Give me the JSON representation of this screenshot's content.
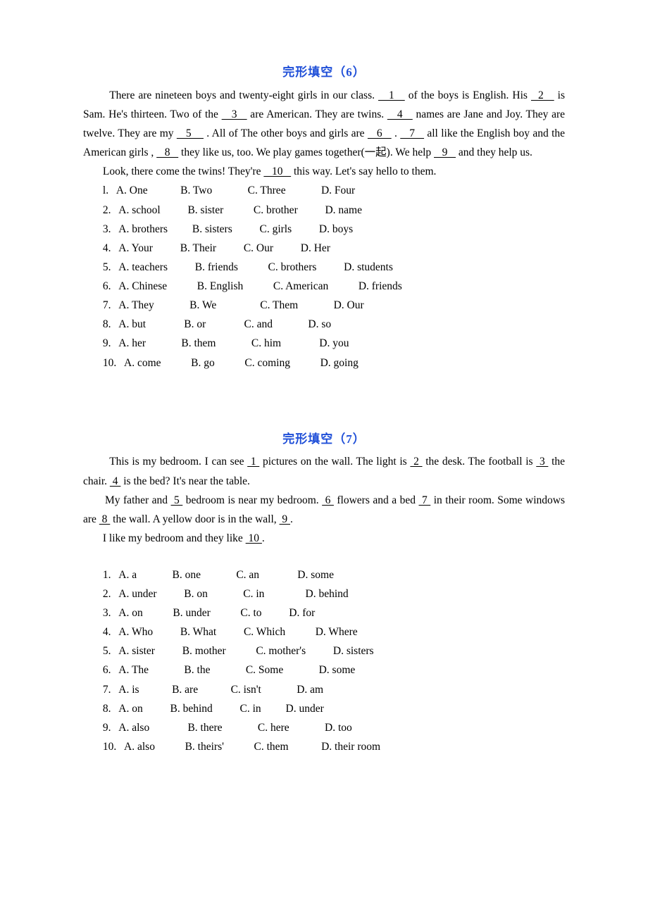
{
  "colors": {
    "title": "#1f4fd8",
    "text": "#000000",
    "background": "#ffffff"
  },
  "typography": {
    "body_family": "Times New Roman",
    "body_size_pt": 12,
    "title_size_pt": 13,
    "title_weight": "bold",
    "line_height": 1.75
  },
  "sec6": {
    "title": "完形填空（6）",
    "p1a": "There are nineteen boys and twenty-eight girls in our class. ",
    "b1": "   1   ",
    "p1b": " of the boys is English. His ",
    "b2": "  2   ",
    "p1c": " is Sam. He's thirteen. Two of the ",
    "b3": "   3   ",
    "p1d": " are American. They are twins. ",
    "b4": "   4   ",
    "p1e": " names are Jane and Joy. They are twelve. They are my ",
    "b5": "   5    ",
    "p1f": " . All of The other boys and girls are ",
    "b6": "   6   ",
    "p1g": " . ",
    "b7": "   7   ",
    "p1h": " all like the English boy and the American girls ,    ",
    "b8": "   8   ",
    "p1i": "  they like us, too. We play games together(",
    "cn1": "一起",
    "p1j": "). We help ",
    "b9": "   9   ",
    "p1k": " and they help us.",
    "p2a": "Look, there come the twins! They're    ",
    "b10": "   10   ",
    "p2b": "  this way. Let's say hello to them.",
    "rows": [
      "l.   A. One            B. Two             C. Three             D. Four",
      "2.   A. school          B. sister           C. brother          D. name",
      "3.   A. brothers         B. sisters          C. girls          D. boys",
      "4.   A. Your          B. Their          C. Our          D. Her",
      "5.   A. teachers          B. friends           C. brothers          D. students",
      "6.   A. Chinese           B. English           C. American           D. friends",
      "7.   A. They             B. We                C. Them             D. Our",
      "8.   A. but              B. or              C. and             D. so",
      "9.   A. her             B. them             C. him              D. you",
      "10.   A. come           B. go           C. coming           D. going"
    ]
  },
  "sec7": {
    "title": "完形填空（7）",
    "p1a": "This is my bedroom. I can see ",
    "b1": " 1 ",
    "p1b": " pictures on the wall. The light is ",
    "b2": " 2 ",
    "p1c": " the desk. The football is ",
    "b3": " 3 ",
    "p1d": " the chair. ",
    "b4": " 4 ",
    "p1e": " is the bed? It's near the table.",
    "p2a": "My father and ",
    "b5": " 5 ",
    "p2b": " bedroom is near my bedroom. ",
    "b6": " 6 ",
    "p2c": " flowers and a bed ",
    "b7": " 7 ",
    "p2d": " in their room. Some windows are ",
    "b8": " 8 ",
    "p2e": " the wall. A yellow door is in the wall, ",
    "b9": " 9 ",
    "p2f": ".",
    "p3a": "I like my bedroom and they like ",
    "b10": " 10 ",
    "p3b": ".",
    "rows": [
      "1.   A. a             B. one             C. an              D. some",
      "2.   A. under          B. on             C. in               D. behind",
      "3.   A. on           B. under           C. to          D. for",
      "4.   A. Who          B. What          C. Which           D. Where",
      "5.   A. sister          B. mother           C. mother's          D. sisters",
      "6.   A. The             B. the             C. Some             D. some",
      "7.   A. is            B. are            C. isn't             D. am",
      "8.   A. on          B. behind          C. in         D. under",
      "9.   A. also              B. there             C. here             D. too",
      "10.   A. also           B. theirs'           C. them            D. their room"
    ]
  }
}
